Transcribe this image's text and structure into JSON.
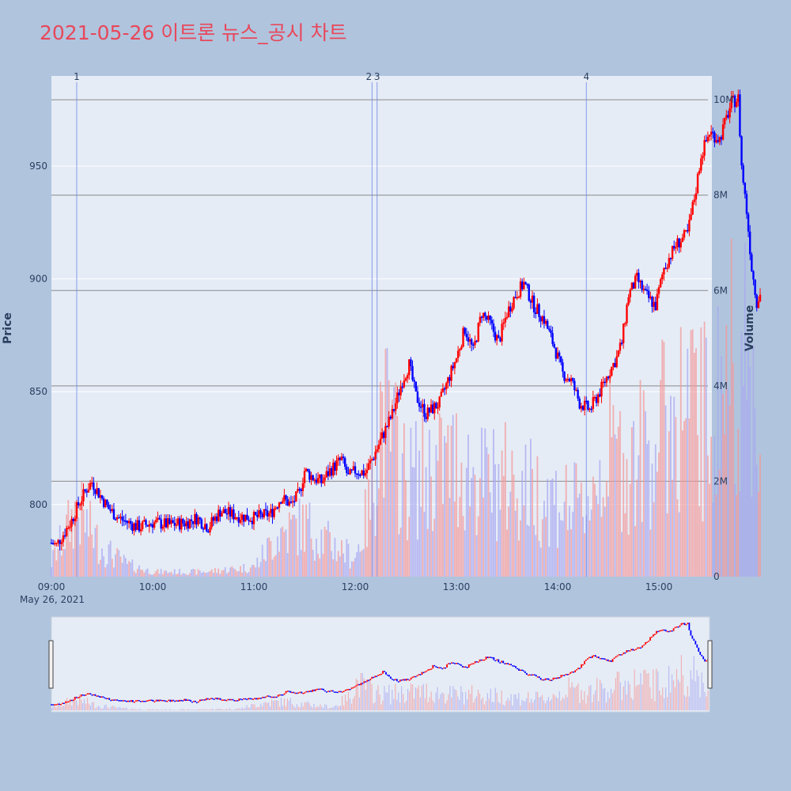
{
  "chart_data": {
    "type": "candlestick",
    "title": "2021-05-26 이트론 뉴스_공시 차트",
    "ylabel_left": "Price",
    "ylabel_right": "Volume",
    "x_ticks": [
      "09:00",
      "10:00",
      "11:00",
      "12:00",
      "13:00",
      "14:00",
      "15:00"
    ],
    "x_date_label": "May 26, 2021",
    "price_ticks": [
      800,
      850,
      900,
      950
    ],
    "price_range": [
      768,
      990
    ],
    "volume_ticks": [
      "0",
      "2M",
      "4M",
      "6M",
      "8M",
      "10M"
    ],
    "volume_range_millions": [
      0,
      10.5
    ],
    "event_markers": [
      {
        "label": "1",
        "time": "09:15"
      },
      {
        "label": "2",
        "time": "12:10"
      },
      {
        "label": "3",
        "time": "12:13"
      },
      {
        "label": "4",
        "time": "14:17"
      }
    ],
    "colors": {
      "increasing": "#ff0000",
      "decreasing": "#0000ff"
    },
    "price_keyframes": [
      [
        "09:00",
        783
      ],
      [
        "09:03",
        782
      ],
      [
        "09:08",
        788
      ],
      [
        "09:12",
        793
      ],
      [
        "09:16",
        800
      ],
      [
        "09:21",
        807
      ],
      [
        "09:24",
        810
      ],
      [
        "09:28",
        805
      ],
      [
        "09:34",
        798
      ],
      [
        "09:40",
        794
      ],
      [
        "09:48",
        791
      ],
      [
        "09:52",
        790
      ],
      [
        "10:00",
        792
      ],
      [
        "10:10",
        791
      ],
      [
        "10:20",
        792
      ],
      [
        "10:26",
        794
      ],
      [
        "10:33",
        790
      ],
      [
        "10:40",
        797
      ],
      [
        "10:50",
        795
      ],
      [
        "11:00",
        794
      ],
      [
        "11:10",
        796
      ],
      [
        "11:16",
        803
      ],
      [
        "11:22",
        800
      ],
      [
        "11:27",
        805
      ],
      [
        "11:30",
        815
      ],
      [
        "11:35",
        812
      ],
      [
        "11:40",
        810
      ],
      [
        "11:45",
        815
      ],
      [
        "11:52",
        820
      ],
      [
        "11:56",
        812
      ],
      [
        "12:00",
        815
      ],
      [
        "12:06",
        814
      ],
      [
        "12:10",
        820
      ],
      [
        "12:16",
        830
      ],
      [
        "12:22",
        840
      ],
      [
        "12:28",
        855
      ],
      [
        "12:32",
        862
      ],
      [
        "12:36",
        848
      ],
      [
        "12:42",
        840
      ],
      [
        "12:50",
        845
      ],
      [
        "12:55",
        855
      ],
      [
        "13:00",
        865
      ],
      [
        "13:05",
        878
      ],
      [
        "13:10",
        868
      ],
      [
        "13:15",
        885
      ],
      [
        "13:20",
        880
      ],
      [
        "13:25",
        872
      ],
      [
        "13:30",
        885
      ],
      [
        "13:35",
        893
      ],
      [
        "13:40",
        898
      ],
      [
        "13:46",
        888
      ],
      [
        "13:52",
        882
      ],
      [
        "13:58",
        870
      ],
      [
        "14:03",
        858
      ],
      [
        "14:08",
        855
      ],
      [
        "14:13",
        845
      ],
      [
        "14:19",
        842
      ],
      [
        "14:25",
        850
      ],
      [
        "14:30",
        858
      ],
      [
        "14:35",
        865
      ],
      [
        "14:38",
        872
      ],
      [
        "14:42",
        893
      ],
      [
        "14:47",
        900
      ],
      [
        "14:52",
        893
      ],
      [
        "14:58",
        888
      ],
      [
        "15:03",
        905
      ],
      [
        "15:10",
        915
      ],
      [
        "15:17",
        920
      ],
      [
        "15:22",
        940
      ],
      [
        "15:25",
        955
      ],
      [
        "15:30",
        965
      ],
      [
        "15:36",
        962
      ],
      [
        "15:43",
        978
      ],
      [
        "15:47",
        980
      ],
      [
        "15:49",
        950
      ],
      [
        "15:52",
        930
      ],
      [
        "15:55",
        905
      ],
      [
        "15:58",
        890
      ],
      [
        "16:00",
        893
      ]
    ],
    "volume_keyframes_millions": [
      [
        "09:00",
        0.3
      ],
      [
        "09:15",
        1.4
      ],
      [
        "09:30",
        0.6
      ],
      [
        "09:45",
        0.25
      ],
      [
        "10:00",
        0.1
      ],
      [
        "10:30",
        0.1
      ],
      [
        "11:00",
        0.2
      ],
      [
        "11:15",
        0.9
      ],
      [
        "11:30",
        1.1
      ],
      [
        "11:45",
        0.7
      ],
      [
        "12:00",
        0.4
      ],
      [
        "12:10",
        1.6
      ],
      [
        "12:15",
        3.5
      ],
      [
        "12:30",
        2.0
      ],
      [
        "12:45",
        2.2
      ],
      [
        "13:00",
        2.4
      ],
      [
        "13:15",
        2.0
      ],
      [
        "13:30",
        2.0
      ],
      [
        "13:45",
        1.8
      ],
      [
        "14:00",
        1.6
      ],
      [
        "14:15",
        1.4
      ],
      [
        "14:30",
        2.6
      ],
      [
        "14:45",
        2.4
      ],
      [
        "15:00",
        3.0
      ],
      [
        "15:15",
        3.6
      ],
      [
        "15:30",
        3.2
      ],
      [
        "15:45",
        4.8
      ],
      [
        "16:00",
        3.5
      ]
    ]
  }
}
